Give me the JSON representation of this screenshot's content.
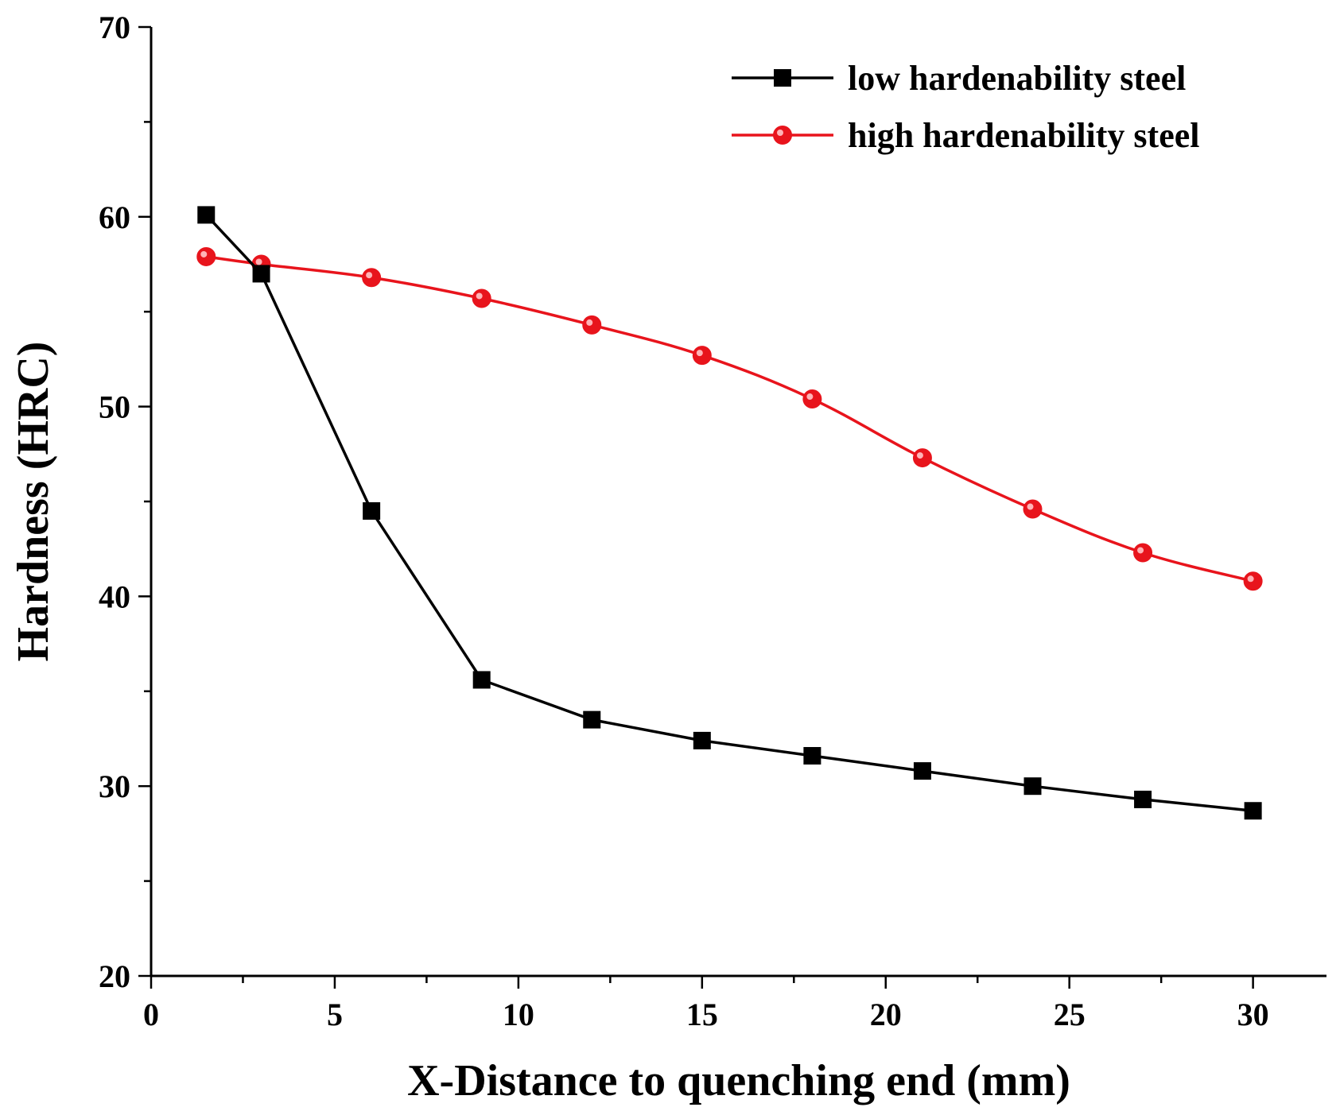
{
  "chart_data": {
    "type": "line",
    "title": "",
    "xlabel": "X-Distance to quenching end (mm)",
    "ylabel": "Hardness (HRC)",
    "xlim": [
      0,
      32
    ],
    "ylim": [
      20,
      70
    ],
    "xticks": [
      0,
      5,
      10,
      15,
      20,
      25,
      30
    ],
    "xtick_labels": [
      "0",
      "5",
      "10",
      "15",
      "20",
      "25",
      "30"
    ],
    "yticks": [
      20,
      30,
      40,
      50,
      60,
      70
    ],
    "ytick_labels": [
      "20",
      "30",
      "40",
      "50",
      "60",
      "70"
    ],
    "grid": false,
    "legend_position": "top-right",
    "series": [
      {
        "name": "low hardenability steel",
        "color": "#000000",
        "marker": "square",
        "x": [
          1.5,
          3,
          6,
          9,
          12,
          15,
          18,
          21,
          24,
          27,
          30
        ],
        "y": [
          60.1,
          57.0,
          44.5,
          35.6,
          33.5,
          32.4,
          31.6,
          30.8,
          30.0,
          29.3,
          28.7
        ]
      },
      {
        "name": "high hardenability steel",
        "color": "#e8141c",
        "marker": "circle",
        "x": [
          1.5,
          3,
          6,
          9,
          12,
          15,
          18,
          21,
          24,
          27,
          30
        ],
        "y": [
          57.9,
          57.5,
          56.8,
          55.7,
          54.3,
          52.7,
          50.4,
          47.3,
          44.6,
          42.3,
          40.8
        ]
      }
    ]
  }
}
